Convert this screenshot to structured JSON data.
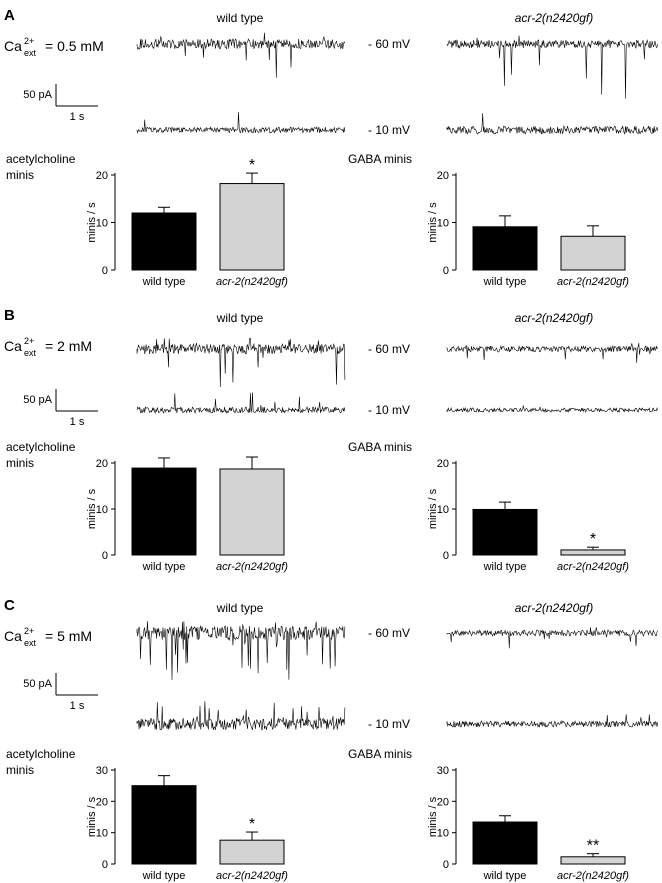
{
  "figure": {
    "panels": [
      {
        "letter": "A",
        "calcium": {
          "prefix": "Ca",
          "sup": "2+",
          "sub": "ext",
          "value": "= 0.5 mM"
        },
        "trace_headers": [
          "wild type",
          "acr-2(n2420gf)"
        ],
        "voltages": [
          "- 60 mV",
          "- 10 mV"
        ],
        "scalebar": {
          "current": "50 pA",
          "time": "1 s"
        },
        "left_title": [
          "acetylcholine",
          "minis"
        ],
        "right_title": "GABA minis"
      },
      {
        "letter": "B",
        "calcium": {
          "prefix": "Ca",
          "sup": "2+",
          "sub": "ext",
          "value": "= 2 mM"
        },
        "trace_headers": [
          "wild type",
          "acr-2(n2420gf)"
        ],
        "voltages": [
          "- 60 mV",
          "- 10 mV"
        ],
        "scalebar": {
          "current": "50 pA",
          "time": "1 s"
        },
        "left_title": [
          "acetylcholine",
          "minis"
        ],
        "right_title": "GABA minis"
      },
      {
        "letter": "C",
        "calcium": {
          "prefix": "Ca",
          "sup": "2+",
          "sub": "ext",
          "value": "= 5 mM"
        },
        "trace_headers": [
          "wild type",
          "acr-2(n2420gf)"
        ],
        "voltages": [
          "- 60 mV",
          "- 10 mV"
        ],
        "scalebar": {
          "current": "50 pA",
          "time": "1 s"
        },
        "left_title": [
          "acetylcholine",
          "minis"
        ],
        "right_title": "GABA minis"
      }
    ]
  },
  "chart_data": [
    {
      "panel": "A",
      "measure": "acetylcholine minis",
      "type": "bar",
      "categories": [
        "wild type",
        "acr-2(n2420gf)"
      ],
      "values": [
        12,
        18.2
      ],
      "errors": [
        1.2,
        2.2
      ],
      "significance": [
        "",
        "*"
      ],
      "ylabel": "minis / s",
      "ylim": [
        0,
        20
      ],
      "yticks": [
        0,
        10,
        20
      ],
      "colors": [
        "#000000",
        "#d3d3d3"
      ]
    },
    {
      "panel": "A",
      "measure": "GABA minis",
      "type": "bar",
      "categories": [
        "wild type",
        "acr-2(n2420gf)"
      ],
      "values": [
        9.1,
        7.1
      ],
      "errors": [
        2.3,
        2.2
      ],
      "significance": [
        "",
        ""
      ],
      "ylabel": "minis / s",
      "ylim": [
        0,
        20
      ],
      "yticks": [
        0,
        10,
        20
      ],
      "colors": [
        "#000000",
        "#d3d3d3"
      ]
    },
    {
      "panel": "B",
      "measure": "acetylcholine minis",
      "type": "bar",
      "categories": [
        "wild type",
        "acr-2(n2420gf)"
      ],
      "values": [
        18.9,
        18.7
      ],
      "errors": [
        2.2,
        2.6
      ],
      "significance": [
        "",
        ""
      ],
      "ylabel": "minis / s",
      "ylim": [
        0,
        20
      ],
      "yticks": [
        0,
        10,
        20
      ],
      "colors": [
        "#000000",
        "#d3d3d3"
      ]
    },
    {
      "panel": "B",
      "measure": "GABA minis",
      "type": "bar",
      "categories": [
        "wild type",
        "acr-2(n2420gf)"
      ],
      "values": [
        9.9,
        1.1
      ],
      "errors": [
        1.6,
        0.6
      ],
      "significance": [
        "",
        "*"
      ],
      "ylabel": "minis / s",
      "ylim": [
        0,
        20
      ],
      "yticks": [
        0,
        10,
        20
      ],
      "colors": [
        "#000000",
        "#d3d3d3"
      ]
    },
    {
      "panel": "C",
      "measure": "acetylcholine minis",
      "type": "bar",
      "categories": [
        "wild type",
        "acr-2(n2420gf)"
      ],
      "values": [
        25,
        7.6
      ],
      "errors": [
        3.2,
        2.6
      ],
      "significance": [
        "",
        "*"
      ],
      "ylabel": "minis / s",
      "ylim": [
        0,
        30
      ],
      "yticks": [
        0,
        10,
        20,
        30
      ],
      "colors": [
        "#000000",
        "#d3d3d3"
      ]
    },
    {
      "panel": "C",
      "measure": "GABA minis",
      "type": "bar",
      "categories": [
        "wild type",
        "acr-2(n2420gf)"
      ],
      "values": [
        13.4,
        2.3
      ],
      "errors": [
        2.0,
        1.0
      ],
      "significance": [
        "",
        "**"
      ],
      "ylabel": "minis / s",
      "ylim": [
        0,
        30
      ],
      "yticks": [
        0,
        10,
        20,
        30
      ],
      "colors": [
        "#000000",
        "#d3d3d3"
      ]
    }
  ]
}
